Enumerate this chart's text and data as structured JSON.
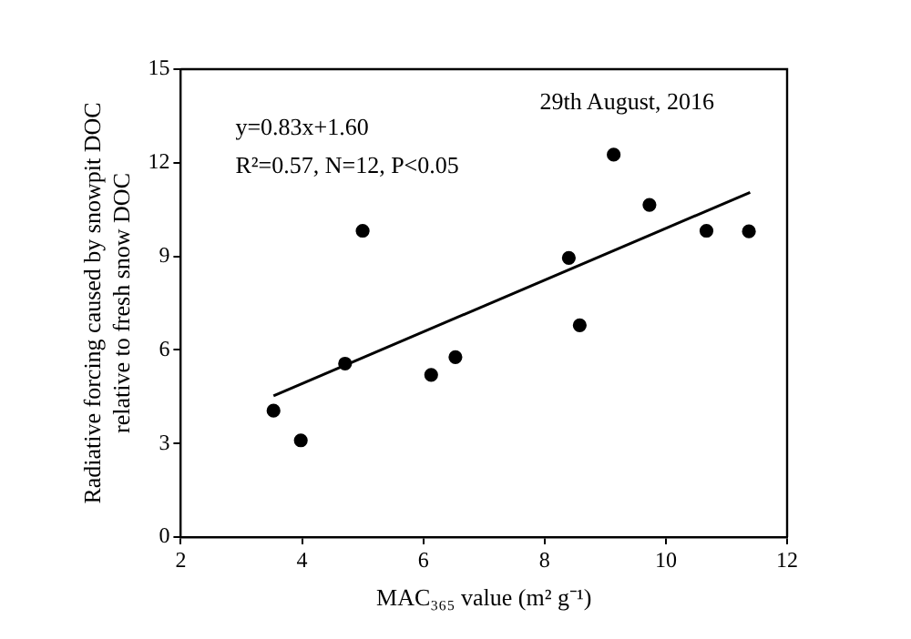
{
  "chart_data": {
    "type": "scatter",
    "xlabel": "MAC₃₆₅ value (m² g⁻¹)",
    "ylabel": "Radiative forcing caused by snowpit DOC\nrelative to fresh snow DOC",
    "annotations": [
      "y=0.83x+1.60",
      "R²=0.57, N=12, P<0.05",
      "29th August, 2016"
    ],
    "series": [
      {
        "color": "#000000",
        "marker": "circle",
        "x": [
          3.53,
          3.98,
          4.71,
          5.0,
          6.13,
          6.53,
          8.4,
          8.58,
          9.14,
          9.73,
          10.67,
          11.37
        ],
        "values": [
          4.05,
          3.1,
          5.56,
          9.82,
          5.2,
          5.77,
          8.95,
          6.79,
          12.26,
          10.65,
          9.82,
          9.8
        ]
      },
      {
        "type": "line",
        "color": "#000000",
        "marker": "none",
        "line_style": "solid",
        "x": [
          3.53,
          11.39
        ],
        "values": [
          4.53,
          11.05
        ]
      }
    ],
    "xlim": [
      2,
      12
    ],
    "xticks": [
      2,
      4,
      6,
      8,
      10,
      12
    ],
    "ylim": [
      0,
      15
    ],
    "yticks": [
      0,
      3,
      6,
      9,
      12,
      15
    ],
    "grid": false,
    "legend": false
  }
}
